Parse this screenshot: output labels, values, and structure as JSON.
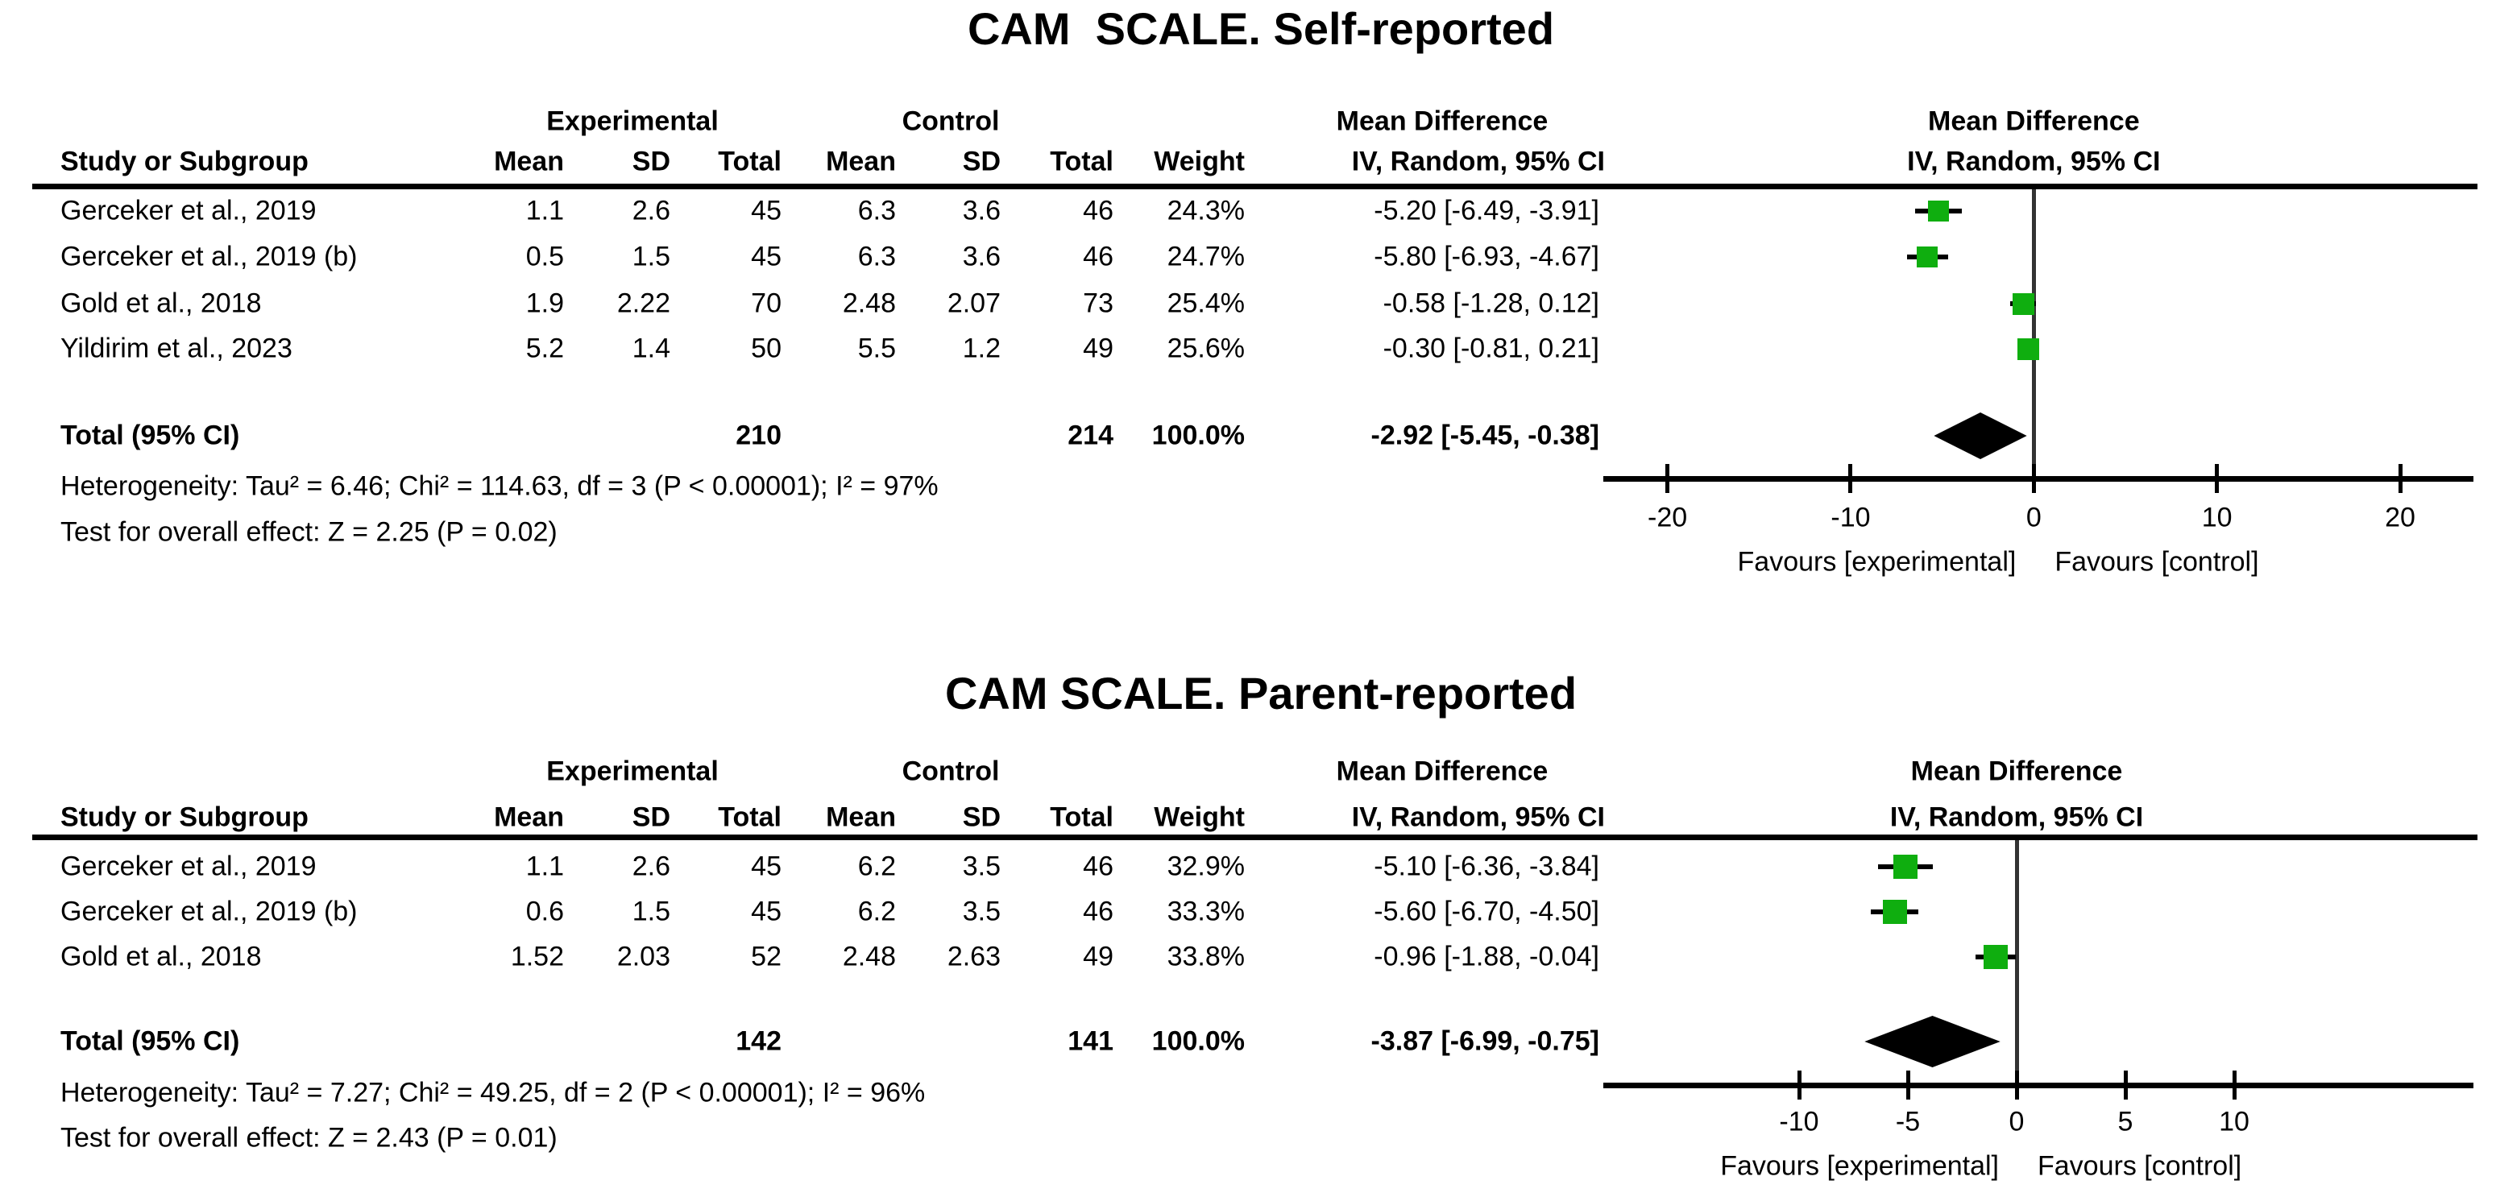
{
  "page": {
    "background": "#ffffff",
    "text_color": "#000000",
    "marker_color": "#0fae0f",
    "diamond_color": "#000000",
    "zero_line_color": "#333333",
    "axis_color": "#000000"
  },
  "chart_data": [
    {
      "type": "scatter",
      "subtype": "forest-plot-mean-difference",
      "title": "CAM  SCALE. Self-reported",
      "columns": {
        "study": "Study or Subgroup",
        "group1": "Experimental",
        "group2": "Control",
        "mean": "Mean",
        "sd": "SD",
        "total": "Total",
        "weight": "Weight",
        "md": "Mean Difference",
        "model": "IV, Random, 95% CI"
      },
      "studies": [
        {
          "name": "Gerceker et al., 2019",
          "exp_mean": "1.1",
          "exp_sd": "2.6",
          "exp_total": "45",
          "ctl_mean": "6.3",
          "ctl_sd": "3.6",
          "ctl_total": "46",
          "weight": "24.3%",
          "weight_pct": 24.3,
          "ci_text": "-5.20 [-6.49, -3.91]",
          "md": -5.2,
          "ci_low": -6.49,
          "ci_high": -3.91
        },
        {
          "name": "Gerceker et al., 2019 (b)",
          "exp_mean": "0.5",
          "exp_sd": "1.5",
          "exp_total": "45",
          "ctl_mean": "6.3",
          "ctl_sd": "3.6",
          "ctl_total": "46",
          "weight": "24.7%",
          "weight_pct": 24.7,
          "ci_text": "-5.80 [-6.93, -4.67]",
          "md": -5.8,
          "ci_low": -6.93,
          "ci_high": -4.67
        },
        {
          "name": "Gold et al., 2018",
          "exp_mean": "1.9",
          "exp_sd": "2.22",
          "exp_total": "70",
          "ctl_mean": "2.48",
          "ctl_sd": "2.07",
          "ctl_total": "73",
          "weight": "25.4%",
          "weight_pct": 25.4,
          "ci_text": "-0.58 [-1.28, 0.12]",
          "md": -0.58,
          "ci_low": -1.28,
          "ci_high": 0.12
        },
        {
          "name": "Yildirim et al., 2023",
          "exp_mean": "5.2",
          "exp_sd": "1.4",
          "exp_total": "50",
          "ctl_mean": "5.5",
          "ctl_sd": "1.2",
          "ctl_total": "49",
          "weight": "25.6%",
          "weight_pct": 25.6,
          "ci_text": "-0.30 [-0.81, 0.21]",
          "md": -0.3,
          "ci_low": -0.81,
          "ci_high": 0.21
        }
      ],
      "total": {
        "label": "Total (95% CI)",
        "exp_total": "210",
        "ctl_total": "214",
        "weight": "100.0%",
        "ci_text": "-2.92 [-5.45, -0.38]",
        "md": -2.92,
        "ci_low": -5.45,
        "ci_high": -0.38
      },
      "heterogeneity": "Heterogeneity: Tau² = 6.46; Chi² = 114.63, df = 3 (P < 0.00001); I² = 97%",
      "overall_effect": "Test for overall effect: Z = 2.25 (P = 0.02)",
      "axis": {
        "min": -23.5,
        "max": 24,
        "ticks": [
          -20,
          -10,
          0,
          10,
          20
        ],
        "tick_labels": [
          "-20",
          "-10",
          "0",
          "10",
          "20"
        ]
      },
      "footer_left": "Favours [experimental]",
      "footer_right": "Favours [control]"
    },
    {
      "type": "scatter",
      "subtype": "forest-plot-mean-difference",
      "title": "CAM SCALE. Parent-reported",
      "columns": {
        "study": "Study or Subgroup",
        "group1": "Experimental",
        "group2": "Control",
        "mean": "Mean",
        "sd": "SD",
        "total": "Total",
        "weight": "Weight",
        "md": "Mean Difference",
        "model": "IV, Random, 95% CI"
      },
      "studies": [
        {
          "name": "Gerceker et al., 2019",
          "exp_mean": "1.1",
          "exp_sd": "2.6",
          "exp_total": "45",
          "ctl_mean": "6.2",
          "ctl_sd": "3.5",
          "ctl_total": "46",
          "weight": "32.9%",
          "weight_pct": 32.9,
          "ci_text": "-5.10 [-6.36, -3.84]",
          "md": -5.1,
          "ci_low": -6.36,
          "ci_high": -3.84
        },
        {
          "name": "Gerceker et al., 2019 (b)",
          "exp_mean": "0.6",
          "exp_sd": "1.5",
          "exp_total": "45",
          "ctl_mean": "6.2",
          "ctl_sd": "3.5",
          "ctl_total": "46",
          "weight": "33.3%",
          "weight_pct": 33.3,
          "ci_text": "-5.60 [-6.70, -4.50]",
          "md": -5.6,
          "ci_low": -6.7,
          "ci_high": -4.5
        },
        {
          "name": "Gold et al., 2018",
          "exp_mean": "1.52",
          "exp_sd": "2.03",
          "exp_total": "52",
          "ctl_mean": "2.48",
          "ctl_sd": "2.63",
          "ctl_total": "49",
          "weight": "33.8%",
          "weight_pct": 33.8,
          "ci_text": "-0.96 [-1.88, -0.04]",
          "md": -0.96,
          "ci_low": -1.88,
          "ci_high": -0.04
        }
      ],
      "total": {
        "label": "Total (95% CI)",
        "exp_total": "142",
        "ctl_total": "141",
        "weight": "100.0%",
        "ci_text": "-3.87 [-6.99, -0.75]",
        "md": -3.87,
        "ci_low": -6.99,
        "ci_high": -0.75
      },
      "heterogeneity": "Heterogeneity: Tau² = 7.27; Chi² = 49.25, df = 2 (P < 0.00001); I² = 96%",
      "overall_effect": "Test for overall effect: Z = 2.43 (P = 0.01)",
      "axis": {
        "min": -19,
        "max": 21,
        "ticks": [
          -10,
          -5,
          0,
          5,
          10
        ],
        "tick_labels": [
          "-10",
          "-5",
          "0",
          "5",
          "10"
        ]
      },
      "footer_left": "Favours [experimental]",
      "footer_right": "Favours [control]"
    }
  ]
}
